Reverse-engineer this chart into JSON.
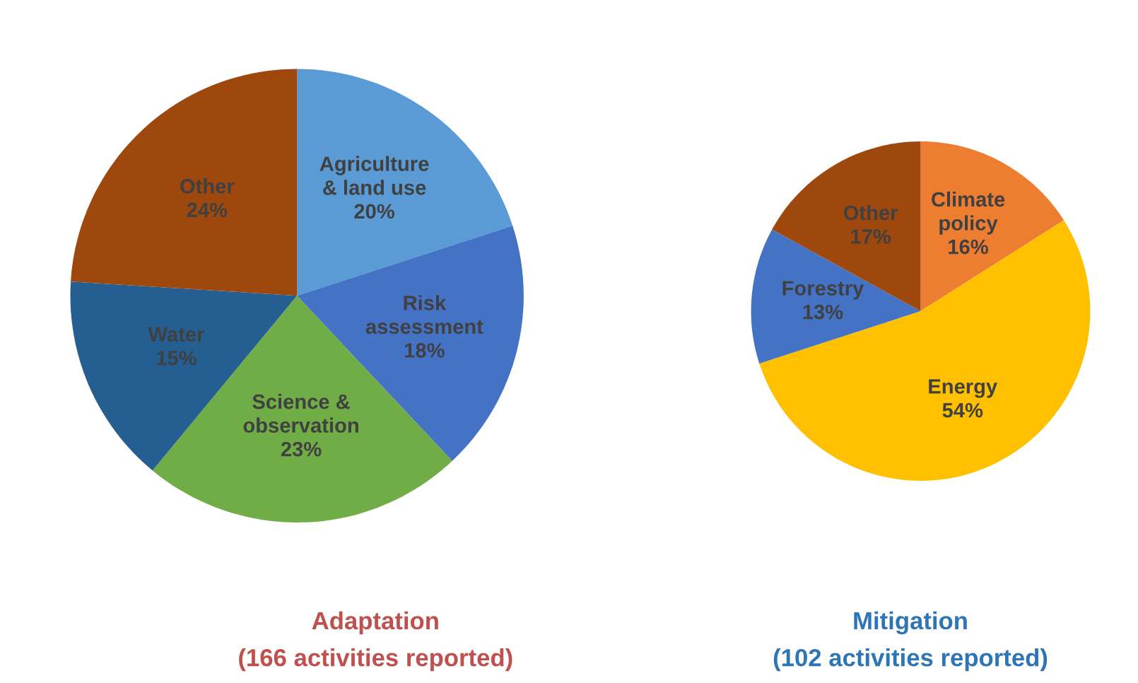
{
  "chart_data": [
    {
      "type": "pie",
      "title": "Adaptation",
      "subtitle": "(166 activities reported)",
      "categories": [
        "Agriculture & land use",
        "Risk assessment",
        "Science & observation",
        "Water",
        "Other"
      ],
      "values": [
        20,
        18,
        23,
        15,
        24
      ],
      "value_labels": [
        "20%",
        "18%",
        "23%",
        "15%",
        "24%"
      ],
      "colors": [
        "#5b9bd5",
        "#4472c4",
        "#70ad47",
        "#255e91",
        "#9e480e"
      ]
    },
    {
      "type": "pie",
      "title": "Mitigation",
      "subtitle": "(102 activities reported)",
      "categories": [
        "Climate policy",
        "Energy",
        "Forestry",
        "Other"
      ],
      "values": [
        16,
        54,
        13,
        17
      ],
      "value_labels": [
        "16%",
        "54%",
        "13%",
        "17%"
      ],
      "colors": [
        "#ed7d31",
        "#ffc000",
        "#4472c4",
        "#9e480e"
      ]
    }
  ]
}
